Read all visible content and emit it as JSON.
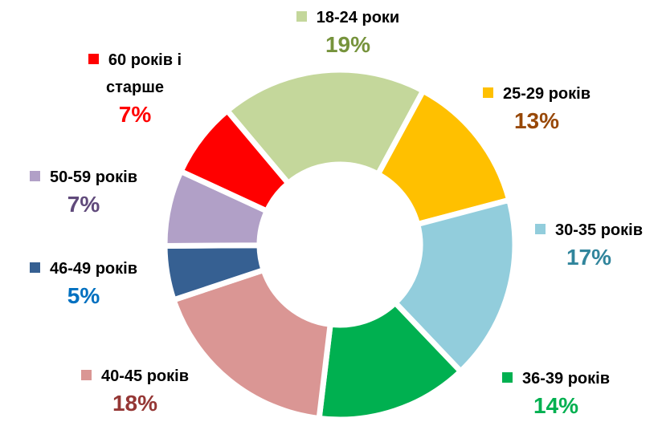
{
  "chart_data": {
    "type": "donut",
    "categories": [
      "18-24 роки",
      "25-29 років",
      "30-35 років",
      "36-39 років",
      "40-45 років",
      "46-49 років",
      "50-59 років",
      "60 років і старше"
    ],
    "values": [
      19,
      13,
      17,
      14,
      18,
      5,
      7,
      7
    ],
    "value_labels": [
      "19%",
      "13%",
      "17%",
      "14%",
      "18%",
      "5%",
      "7%",
      "7%"
    ],
    "colors": [
      "#c4d79b",
      "#ffc000",
      "#92cddc",
      "#00b050",
      "#da9694",
      "#366092",
      "#b1a0c7",
      "#ff0000"
    ],
    "label_colors": [
      "#76933c",
      "#984807",
      "#31859c",
      "#00b050",
      "#953735",
      "#0070c0",
      "#604a7b",
      "#ff0000"
    ]
  }
}
